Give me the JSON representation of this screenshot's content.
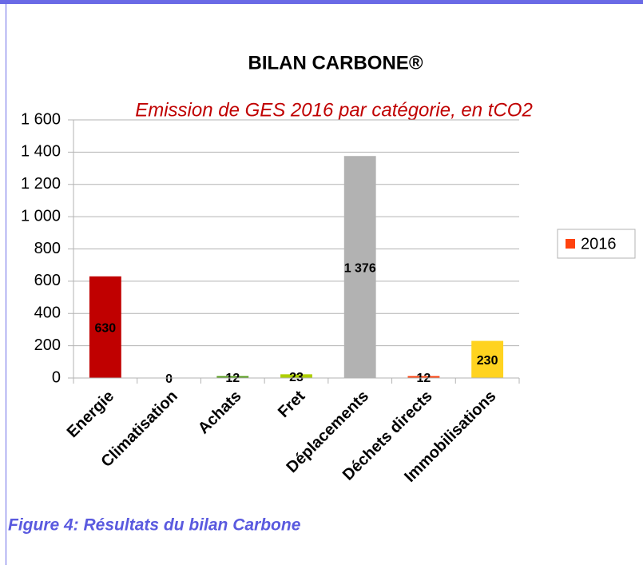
{
  "chart_data": {
    "type": "bar",
    "title": "BILAN CARBONE®",
    "subtitle": "Emission de GES 2016 par catégorie, en tCO2",
    "categories": [
      "Energie",
      "Climatisation",
      "Achats",
      "Fret",
      "Déplacements",
      "Déchets directs",
      "Immobilisations"
    ],
    "series": [
      {
        "name": "2016",
        "color": "#ff420e",
        "values": [
          630,
          0,
          12,
          23,
          1376,
          12,
          230
        ],
        "value_labels": [
          "630",
          "0",
          "12",
          "23",
          "1 376",
          "12",
          "230"
        ]
      }
    ],
    "bar_colors": [
      "#c00000",
      "#c00000",
      "#579d1c",
      "#aecf00",
      "#b2b2b2",
      "#ff420e",
      "#ffd320"
    ],
    "ylim": [
      0,
      1600
    ],
    "yticks": [
      0,
      200,
      400,
      600,
      800,
      {
        "value": 1000,
        "label": "1 000"
      },
      {
        "value": 1200,
        "label": "1 200"
      },
      {
        "value": 1400,
        "label": "1 400"
      },
      {
        "value": 1600,
        "label": "1 600"
      }
    ],
    "grid": true,
    "legend": "right"
  },
  "caption": "Figure 4: Résultats du bilan Carbone"
}
